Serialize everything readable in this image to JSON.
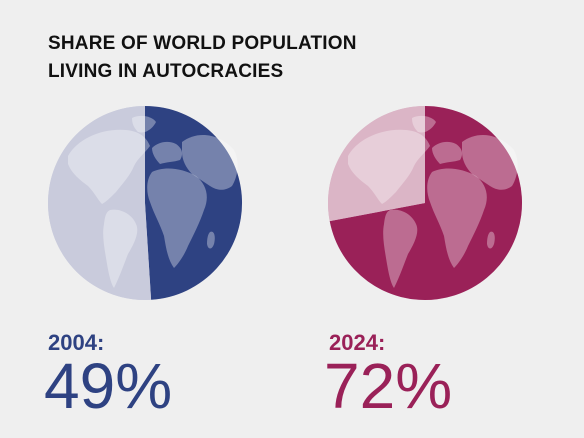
{
  "title_lines": [
    "SHARE OF WORLD POPULATION",
    "LIVING IN AUTOCRACIES"
  ],
  "chart_data": {
    "type": "pie",
    "title": "SHARE OF WORLD POPULATION LIVING IN AUTOCRACIES",
    "charts": [
      {
        "year_label": "2004:",
        "value_label": "49%",
        "value": 49,
        "color": "#2e4282",
        "remainder_color": "#c9cbdc",
        "text_color": "#2e4282"
      },
      {
        "year_label": "2024:",
        "value_label": "72%",
        "value": 72,
        "color": "#9a2158",
        "remainder_color": "#dbb5c6",
        "text_color": "#9a2158"
      }
    ]
  }
}
